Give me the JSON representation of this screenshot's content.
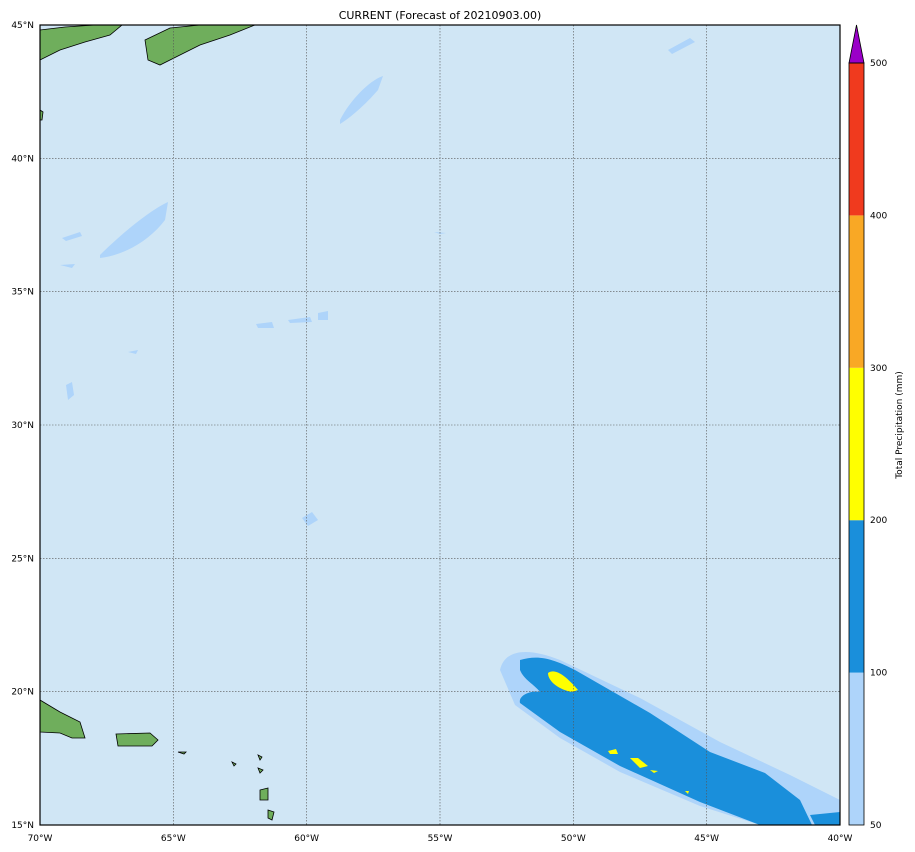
{
  "title": "CURRENT (Forecast of 20210903.00)",
  "map": {
    "lon_range": [
      -70,
      -40
    ],
    "lat_range": [
      15,
      45
    ],
    "lon_labels": [
      "70°W",
      "65°W",
      "60°W",
      "55°W",
      "50°W",
      "45°W",
      "40°W"
    ],
    "lat_labels": [
      "45°N",
      "40°N",
      "35°N",
      "30°N",
      "25°N",
      "20°N",
      "15°N"
    ],
    "grid": true,
    "colors": {
      "ocean": "#d0e6f5",
      "land": "#6fae5c"
    }
  },
  "colorbar": {
    "label": "Total Precipitation (mm)",
    "ticks": [
      "50",
      "100",
      "200",
      "300",
      "400",
      "500"
    ],
    "levels": [
      {
        "from": "50",
        "to": "100",
        "color": "#aed4fa"
      },
      {
        "from": "100",
        "to": "200",
        "color": "#1a8fdb"
      },
      {
        "from": "200",
        "to": "300",
        "color": "#ffff00"
      },
      {
        "from": "300",
        "to": "400",
        "color": "#f9a825"
      },
      {
        "from": "400",
        "to": "500",
        "color": "#f03a1e"
      }
    ],
    "extend_color": "#9a00c8"
  }
}
